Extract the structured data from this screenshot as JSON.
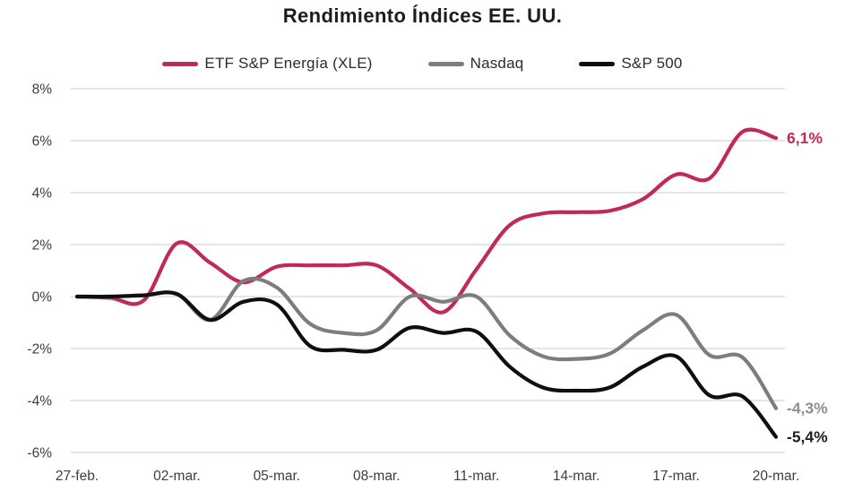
{
  "chart_data": {
    "type": "line",
    "title": "Rendimiento Índices EE. UU.",
    "legend_position": "top-center",
    "grid": "horizontal-only",
    "grid_color": "#d8d8d8",
    "axis_label_color": "#3d3d3d",
    "title_color": "#1d1d1d",
    "ylim": [
      -6,
      8
    ],
    "y_tick_labels": [
      "8%",
      "6%",
      "4%",
      "2%",
      "0%",
      "-2%",
      "-4%",
      "-6%"
    ],
    "y_tick_values": [
      8,
      6,
      4,
      2,
      0,
      -2,
      -4,
      -6
    ],
    "x_tick_labels": [
      "27-feb.",
      "02-mar.",
      "05-mar.",
      "08-mar.",
      "11-mar.",
      "14-mar.",
      "17-mar.",
      "20-mar."
    ],
    "x_dates": [
      "27-feb",
      "28-feb",
      "01-mar",
      "02-mar",
      "03-mar",
      "04-mar",
      "05-mar",
      "06-mar",
      "07-mar",
      "08-mar",
      "09-mar",
      "10-mar",
      "11-mar",
      "12-mar",
      "13-mar",
      "14-mar",
      "15-mar",
      "16-mar",
      "17-mar",
      "18-mar",
      "19-mar",
      "20-mar"
    ],
    "unit": "%",
    "series": [
      {
        "name": "ETF S&P Energía (XLE)",
        "color": "#c12a58",
        "end_label": "6,1%",
        "end_label_color": "#c12a58",
        "end_value": 6.1,
        "values": [
          0,
          -0.05,
          -0.15,
          2.05,
          1.3,
          0.55,
          1.15,
          1.2,
          1.2,
          1.2,
          0.3,
          -0.6,
          1.05,
          2.75,
          3.2,
          3.25,
          3.3,
          3.75,
          4.7,
          4.55,
          6.35,
          6.1
        ]
      },
      {
        "name": "Nasdaq",
        "color": "#7d7d7d",
        "end_label": "-4,3%",
        "end_label_color": "#8f8f8f",
        "end_value": -4.3,
        "values": [
          0,
          0,
          0.05,
          0.1,
          -0.9,
          0.6,
          0.35,
          -1.05,
          -1.4,
          -1.3,
          0,
          -0.2,
          0,
          -1.5,
          -2.3,
          -2.4,
          -2.2,
          -1.3,
          -0.7,
          -2.25,
          -2.35,
          -4.3
        ]
      },
      {
        "name": "S&P 500",
        "color": "#0f0f0f",
        "end_label": "-5,4%",
        "end_label_color": "#1d1d1d",
        "end_value": -5.4,
        "values": [
          0,
          0,
          0.05,
          0.1,
          -0.9,
          -0.2,
          -0.3,
          -1.9,
          -2.05,
          -2.05,
          -1.2,
          -1.4,
          -1.35,
          -2.7,
          -3.5,
          -3.62,
          -3.5,
          -2.7,
          -2.3,
          -3.8,
          -3.85,
          -5.4
        ]
      }
    ]
  }
}
